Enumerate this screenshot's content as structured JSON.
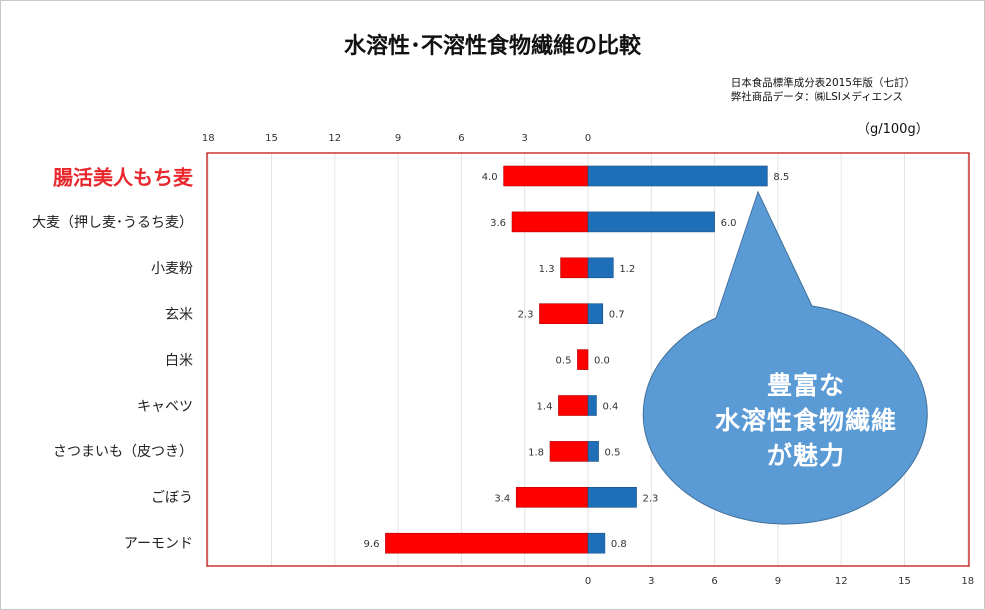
{
  "title": "水溶性･不溶性食物繊維の比較",
  "source_lines": [
    "日本食品標準成分表2015年版（七訂）",
    "弊社商品データ：㈱LSIメディエンス"
  ],
  "unit": "（g/100g）",
  "callout": [
    "豊富な",
    "水溶性食物繊維",
    "が魅力"
  ],
  "colors": {
    "insoluble": "#ff0000",
    "soluble": "#1f6fb8",
    "frame": "#c00000",
    "callout": "#5b9bd5",
    "highlight": "#e8262b"
  },
  "chart_data": {
    "type": "bar",
    "orientation": "horizontal",
    "stacking": "diverging",
    "title": "水溶性･不溶性食物繊維の比較",
    "categories": [
      "腸活美人もち麦",
      "大麦（押し麦･うるち麦）",
      "小麦粉",
      "玄米",
      "白米",
      "キャベツ",
      "さつまいも（皮つき）",
      "ごぼう",
      "アーモンド"
    ],
    "highlight_category": "腸活美人もち麦",
    "series": [
      {
        "direction": "left",
        "color": "#ff0000",
        "values": [
          4.0,
          3.6,
          1.3,
          2.3,
          0.5,
          1.4,
          1.8,
          3.4,
          9.6
        ]
      },
      {
        "direction": "right",
        "color": "#1f6fb8",
        "values": [
          8.5,
          6.0,
          1.2,
          0.7,
          0.0,
          0.4,
          0.5,
          2.3,
          0.8
        ]
      }
    ],
    "top_ticks": [
      18,
      15,
      12,
      9,
      6,
      3,
      0
    ],
    "bottom_ticks": [
      0,
      3,
      6,
      9,
      12,
      15,
      18
    ],
    "xlim": [
      -18,
      18
    ],
    "grid": true,
    "legend": "none"
  }
}
